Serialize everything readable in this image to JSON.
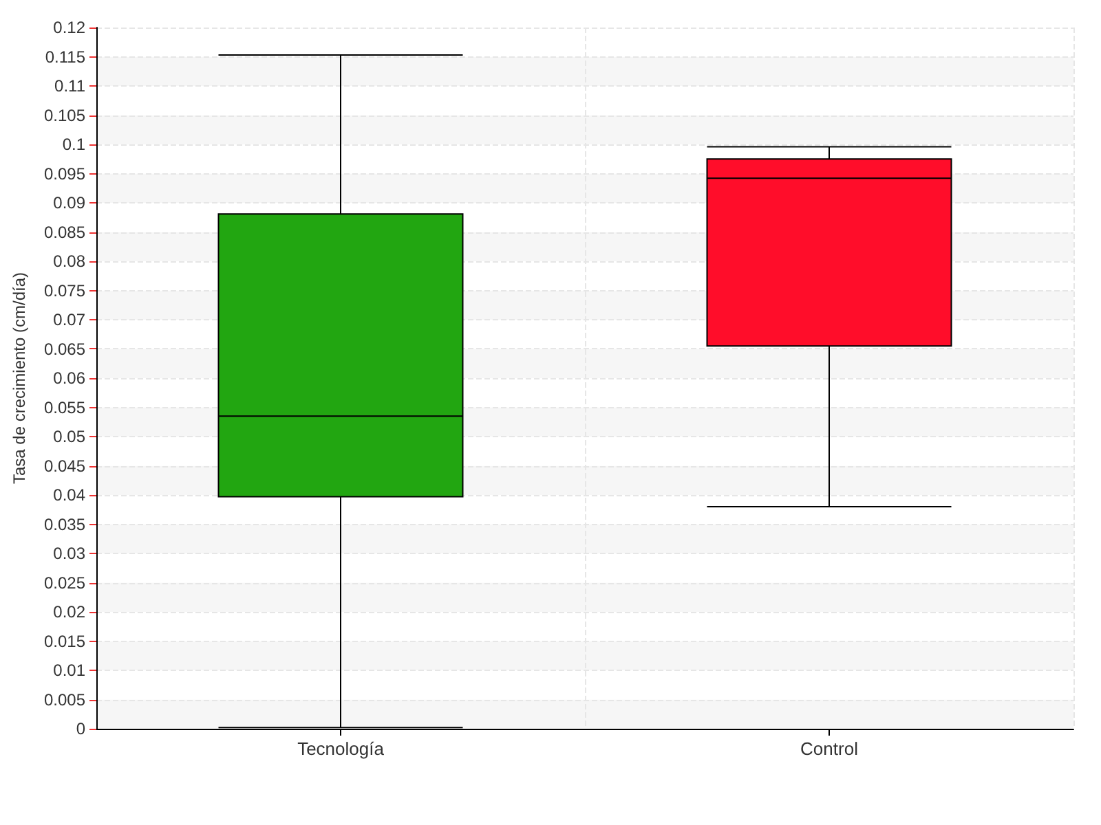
{
  "chart_data": {
    "type": "box",
    "ylabel": "Tasa de crecimiento (cm/día)",
    "categories": [
      "Tecnología",
      "Control"
    ],
    "boxes": [
      {
        "low": 0.0002,
        "q1": 0.0397,
        "median": 0.0535,
        "q3": 0.0881,
        "high": 0.1153
      },
      {
        "low": 0.038,
        "q1": 0.0655,
        "median": 0.0942,
        "q3": 0.0975,
        "high": 0.0996
      }
    ],
    "colors": [
      "#22a611",
      "#ff0d2a"
    ],
    "ylim": [
      0,
      0.12
    ],
    "yticks": [
      0,
      0.005,
      0.01,
      0.015,
      0.02,
      0.025,
      0.03,
      0.035,
      0.04,
      0.045,
      0.05,
      0.055,
      0.06,
      0.065,
      0.07,
      0.075,
      0.08,
      0.085,
      0.09,
      0.095,
      0.1,
      0.105,
      0.11,
      0.115,
      0.12
    ],
    "grid": true
  }
}
